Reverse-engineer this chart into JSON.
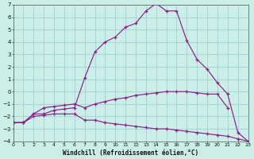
{
  "xlabel": "Windchill (Refroidissement éolien,°C)",
  "bg_color": "#cceee8",
  "grid_color": "#99cccc",
  "line_color": "#882288",
  "xlim": [
    0,
    23
  ],
  "ylim": [
    -4,
    7
  ],
  "xticks": [
    0,
    1,
    2,
    3,
    4,
    5,
    6,
    7,
    8,
    9,
    10,
    11,
    12,
    13,
    14,
    15,
    16,
    17,
    18,
    19,
    20,
    21,
    22,
    23
  ],
  "yticks": [
    -4,
    -3,
    -2,
    -1,
    0,
    1,
    2,
    3,
    4,
    5,
    6,
    7
  ],
  "series": [
    {
      "x": [
        0,
        1,
        2,
        3,
        4,
        5,
        6,
        7,
        8,
        9,
        10,
        11,
        12,
        13,
        14,
        15,
        16,
        17,
        18,
        19,
        20,
        21,
        22,
        23
      ],
      "y": [
        -2.5,
        -2.5,
        -1.8,
        -1.8,
        -1.5,
        -1.4,
        -1.3,
        1.1,
        3.2,
        4.0,
        4.4,
        5.2,
        5.5,
        6.5,
        7.1,
        6.5,
        6.5,
        4.1,
        2.6,
        1.8,
        0.7,
        -0.2,
        -3.3,
        -4.0
      ]
    },
    {
      "x": [
        0,
        1,
        2,
        3,
        4,
        5,
        6,
        7,
        8,
        9,
        10,
        11,
        12,
        13,
        14,
        15,
        16,
        17,
        18,
        19,
        20,
        21
      ],
      "y": [
        -2.5,
        -2.5,
        -1.8,
        -1.3,
        -1.2,
        -1.1,
        -1.0,
        -1.3,
        -1.0,
        -0.8,
        -0.6,
        -0.5,
        -0.3,
        -0.2,
        -0.1,
        0.0,
        0.0,
        0.0,
        -0.1,
        -0.2,
        -0.2,
        -1.3
      ]
    },
    {
      "x": [
        0,
        1,
        2,
        3,
        4,
        5,
        6,
        7,
        8,
        9,
        10,
        11,
        12,
        13,
        14,
        15,
        16,
        17,
        18,
        19,
        20,
        21,
        22,
        23
      ],
      "y": [
        -2.5,
        -2.5,
        -2.0,
        -1.9,
        -1.8,
        -1.8,
        -1.8,
        -2.3,
        -2.3,
        -2.5,
        -2.6,
        -2.7,
        -2.8,
        -2.9,
        -3.0,
        -3.0,
        -3.1,
        -3.2,
        -3.3,
        -3.4,
        -3.5,
        -3.6,
        -3.8,
        -4.0
      ]
    },
    {
      "x": [
        5,
        6,
        7,
        8
      ],
      "y": [
        -1.4,
        -1.3,
        1.1,
        -2.3
      ]
    }
  ]
}
